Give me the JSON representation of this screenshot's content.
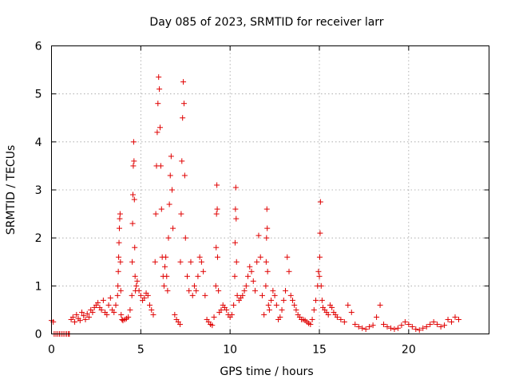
{
  "chart_data": {
    "type": "scatter",
    "title": "Day 085 of 2023, SRMTID for receiver larr",
    "xlabel": "GPS time / hours",
    "ylabel": "SRMTID / TECUs",
    "xlim": [
      0,
      24.5
    ],
    "ylim": [
      0,
      6
    ],
    "xticks": [
      0,
      5,
      10,
      15,
      20
    ],
    "yticks": [
      0,
      1,
      2,
      3,
      4,
      5,
      6
    ],
    "grid": true,
    "marker": "+",
    "color": "#e00000",
    "series": [
      {
        "name": "SRMTID",
        "x": [
          0.0,
          0.1,
          0.15,
          0.25,
          0.35,
          0.45,
          0.55,
          0.65,
          0.75,
          0.85,
          0.95,
          1.0,
          1.1,
          1.2,
          1.3,
          1.4,
          1.5,
          1.6,
          1.7,
          1.8,
          1.9,
          2.0,
          2.1,
          2.2,
          2.3,
          2.4,
          2.5,
          2.6,
          2.7,
          2.8,
          2.9,
          3.0,
          3.1,
          3.2,
          3.3,
          3.4,
          3.5,
          3.6,
          3.7,
          3.72,
          3.74,
          3.76,
          3.78,
          3.8,
          3.82,
          3.84,
          3.86,
          3.88,
          3.9,
          3.95,
          4.0,
          4.1,
          4.2,
          4.3,
          4.4,
          4.5,
          4.52,
          4.54,
          4.56,
          4.58,
          4.6,
          4.62,
          4.64,
          4.66,
          4.68,
          4.7,
          4.75,
          4.8,
          4.9,
          5.0,
          5.1,
          5.2,
          5.3,
          5.4,
          5.5,
          5.6,
          5.7,
          5.8,
          5.84,
          5.88,
          5.92,
          5.96,
          6.0,
          6.04,
          6.08,
          6.12,
          6.16,
          6.2,
          6.25,
          6.3,
          6.35,
          6.4,
          6.45,
          6.5,
          6.55,
          6.6,
          6.65,
          6.7,
          6.75,
          6.8,
          6.9,
          7.0,
          7.1,
          7.2,
          7.22,
          7.26,
          7.3,
          7.34,
          7.38,
          7.42,
          7.46,
          7.5,
          7.6,
          7.7,
          7.8,
          7.9,
          8.0,
          8.1,
          8.2,
          8.3,
          8.4,
          8.5,
          8.6,
          8.7,
          8.8,
          8.9,
          9.0,
          9.1,
          9.2,
          9.22,
          9.24,
          9.26,
          9.28,
          9.3,
          9.35,
          9.4,
          9.5,
          9.6,
          9.7,
          9.8,
          9.9,
          10.0,
          10.1,
          10.2,
          10.26,
          10.28,
          10.3,
          10.32,
          10.34,
          10.36,
          10.4,
          10.5,
          10.6,
          10.7,
          10.8,
          10.9,
          11.0,
          11.1,
          11.2,
          11.3,
          11.4,
          11.5,
          11.6,
          11.7,
          11.8,
          11.9,
          12.0,
          12.02,
          12.04,
          12.06,
          12.08,
          12.1,
          12.15,
          12.2,
          12.3,
          12.4,
          12.5,
          12.6,
          12.7,
          12.8,
          12.9,
          13.0,
          13.1,
          13.2,
          13.3,
          13.4,
          13.5,
          13.6,
          13.7,
          13.8,
          13.9,
          14.0,
          14.1,
          14.2,
          14.3,
          14.4,
          14.5,
          14.6,
          14.7,
          14.8,
          14.9,
          14.95,
          15.0,
          15.02,
          15.04,
          15.06,
          15.1,
          15.15,
          15.2,
          15.3,
          15.4,
          15.5,
          15.6,
          15.7,
          15.8,
          15.9,
          16.0,
          16.2,
          16.4,
          16.6,
          16.8,
          17.0,
          17.2,
          17.4,
          17.6,
          17.8,
          18.0,
          18.2,
          18.4,
          18.6,
          18.8,
          19.0,
          19.2,
          19.4,
          19.6,
          19.8,
          20.0,
          20.2,
          20.4,
          20.6,
          20.8,
          21.0,
          21.2,
          21.4,
          21.6,
          21.8,
          22.0,
          22.2,
          22.4,
          22.6,
          22.8
        ],
        "y": [
          0.28,
          0.25,
          0.0,
          0.0,
          0.0,
          0.0,
          0.0,
          0.0,
          0.0,
          0.0,
          0.0,
          0.0,
          0.3,
          0.35,
          0.25,
          0.4,
          0.32,
          0.28,
          0.45,
          0.38,
          0.3,
          0.42,
          0.35,
          0.5,
          0.45,
          0.55,
          0.6,
          0.65,
          0.55,
          0.5,
          0.7,
          0.45,
          0.4,
          0.6,
          0.75,
          0.5,
          0.45,
          0.6,
          0.8,
          1.0,
          1.3,
          1.6,
          1.9,
          2.2,
          2.4,
          2.5,
          1.5,
          0.9,
          0.4,
          0.3,
          0.28,
          0.3,
          0.32,
          0.35,
          0.5,
          0.8,
          1.5,
          2.3,
          2.9,
          3.5,
          4.0,
          3.6,
          2.8,
          1.8,
          1.2,
          0.9,
          1.0,
          1.1,
          0.9,
          0.8,
          0.7,
          0.75,
          0.85,
          0.8,
          0.6,
          0.5,
          0.4,
          1.5,
          2.5,
          3.5,
          4.2,
          4.8,
          5.35,
          5.1,
          4.3,
          3.5,
          2.6,
          1.6,
          1.2,
          1.0,
          1.4,
          1.6,
          1.2,
          0.9,
          2.0,
          2.7,
          3.3,
          3.7,
          3.0,
          2.2,
          0.4,
          0.3,
          0.25,
          0.2,
          1.5,
          2.5,
          3.6,
          4.5,
          5.25,
          4.8,
          3.3,
          2.0,
          1.2,
          0.9,
          1.5,
          0.8,
          1.0,
          0.9,
          1.2,
          1.6,
          1.5,
          1.3,
          0.8,
          0.3,
          0.25,
          0.2,
          0.18,
          0.35,
          1.0,
          1.8,
          2.5,
          3.1,
          2.6,
          1.6,
          0.9,
          0.45,
          0.5,
          0.6,
          0.55,
          0.5,
          0.4,
          0.35,
          0.4,
          0.6,
          1.2,
          1.9,
          2.6,
          3.05,
          2.4,
          1.5,
          0.8,
          0.7,
          0.75,
          0.8,
          0.9,
          1.0,
          1.2,
          1.4,
          1.3,
          1.1,
          0.9,
          1.5,
          2.05,
          1.6,
          0.8,
          0.4,
          1.0,
          1.5,
          2.0,
          2.6,
          2.2,
          1.3,
          0.6,
          0.5,
          0.7,
          0.9,
          0.8,
          0.6,
          0.3,
          0.35,
          0.5,
          0.7,
          0.9,
          1.6,
          1.3,
          0.8,
          0.7,
          0.6,
          0.5,
          0.4,
          0.35,
          0.3,
          0.3,
          0.28,
          0.25,
          0.22,
          0.2,
          0.3,
          0.5,
          0.7,
          1.0,
          1.3,
          1.2,
          1.6,
          2.1,
          2.75,
          1.0,
          0.7,
          0.55,
          0.5,
          0.45,
          0.4,
          0.6,
          0.55,
          0.45,
          0.4,
          0.35,
          0.3,
          0.25,
          0.6,
          0.45,
          0.2,
          0.15,
          0.12,
          0.1,
          0.15,
          0.18,
          0.35,
          0.6,
          0.2,
          0.15,
          0.12,
          0.1,
          0.12,
          0.18,
          0.25,
          0.2,
          0.15,
          0.1,
          0.08,
          0.12,
          0.15,
          0.2,
          0.25,
          0.2,
          0.15,
          0.18,
          0.3,
          0.25,
          0.35,
          0.3
        ]
      }
    ]
  }
}
